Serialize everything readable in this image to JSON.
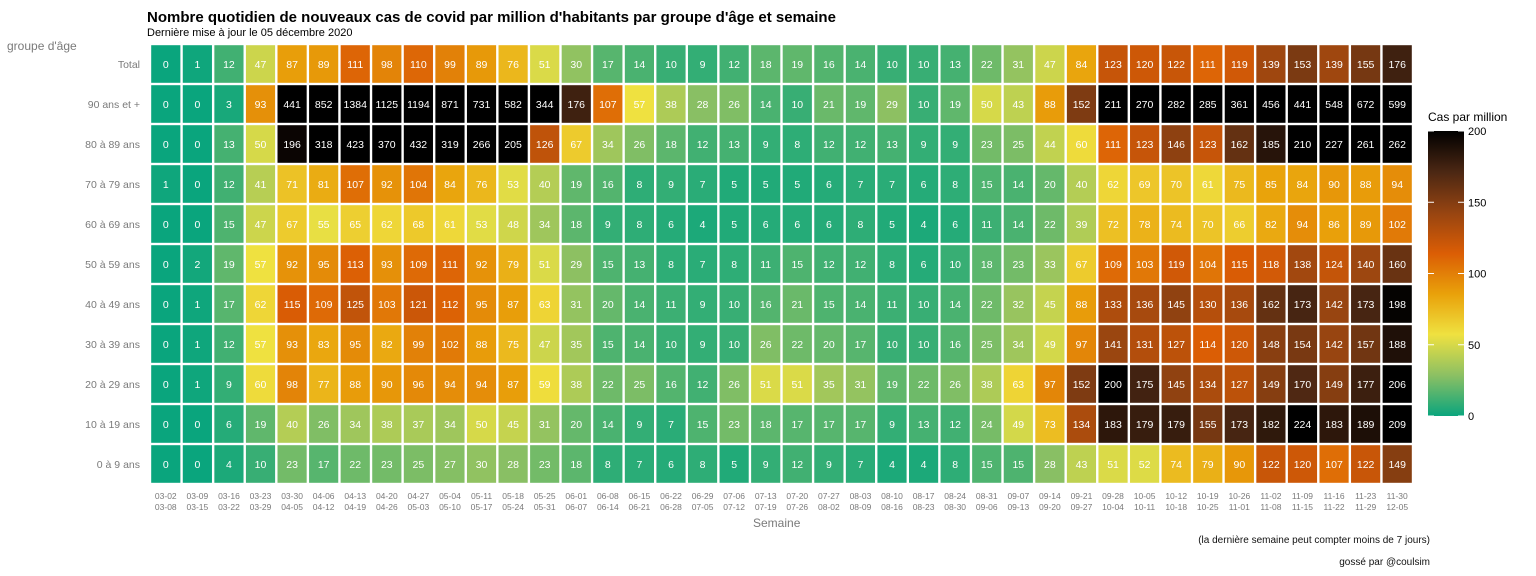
{
  "chart_data": {
    "type": "heatmap",
    "title": "Nombre quotidien de nouveaux cas de covid par million d'habitants par groupe d'âge et semaine",
    "subtitle": "Dernière mise à jour le 05 décembre 2020",
    "ylabel": "groupe d'âge",
    "xlabel": "Semaine",
    "caption": "(la dernière semaine peut compter moins de 7 jours)",
    "credit": "gossé par @coulsim",
    "legend": {
      "title": "Cas par million",
      "ticks": [
        0,
        50,
        100,
        150,
        200
      ],
      "range": [
        0,
        200
      ],
      "placement": "right"
    },
    "colors": [
      "#0aa57d",
      "#8cc063",
      "#efe140",
      "#e9a10a",
      "#db5d05",
      "#964411",
      "#4b2713",
      "#000000"
    ],
    "rows": [
      "Total",
      "90 ans et +",
      "80 à 89 ans",
      "70 à 79 ans",
      "60 à 69 ans",
      "50 à 59 ans",
      "40 à 49 ans",
      "30 à 39 ans",
      "20 à 29 ans",
      "10 à 19 ans",
      "0 à 9 ans"
    ],
    "columns": [
      [
        "03-02",
        "03-08"
      ],
      [
        "03-09",
        "03-15"
      ],
      [
        "03-16",
        "03-22"
      ],
      [
        "03-23",
        "03-29"
      ],
      [
        "03-30",
        "04-05"
      ],
      [
        "04-06",
        "04-12"
      ],
      [
        "04-13",
        "04-19"
      ],
      [
        "04-20",
        "04-26"
      ],
      [
        "04-27",
        "05-03"
      ],
      [
        "05-04",
        "05-10"
      ],
      [
        "05-11",
        "05-17"
      ],
      [
        "05-18",
        "05-24"
      ],
      [
        "05-25",
        "05-31"
      ],
      [
        "06-01",
        "06-07"
      ],
      [
        "06-08",
        "06-14"
      ],
      [
        "06-15",
        "06-21"
      ],
      [
        "06-22",
        "06-28"
      ],
      [
        "06-29",
        "07-05"
      ],
      [
        "07-06",
        "07-12"
      ],
      [
        "07-13",
        "07-19"
      ],
      [
        "07-20",
        "07-26"
      ],
      [
        "07-27",
        "08-02"
      ],
      [
        "08-03",
        "08-09"
      ],
      [
        "08-10",
        "08-16"
      ],
      [
        "08-17",
        "08-23"
      ],
      [
        "08-24",
        "08-30"
      ],
      [
        "08-31",
        "09-06"
      ],
      [
        "09-07",
        "09-13"
      ],
      [
        "09-14",
        "09-20"
      ],
      [
        "09-21",
        "09-27"
      ],
      [
        "09-28",
        "10-04"
      ],
      [
        "10-05",
        "10-11"
      ],
      [
        "10-12",
        "10-18"
      ],
      [
        "10-19",
        "10-25"
      ],
      [
        "10-26",
        "11-01"
      ],
      [
        "11-02",
        "11-08"
      ],
      [
        "11-09",
        "11-15"
      ],
      [
        "11-16",
        "11-22"
      ],
      [
        "11-23",
        "11-29"
      ],
      [
        "11-30",
        "12-05"
      ]
    ],
    "values": [
      [
        0,
        1,
        12,
        47,
        87,
        89,
        111,
        98,
        110,
        99,
        89,
        76,
        51,
        30,
        17,
        14,
        10,
        9,
        12,
        18,
        19,
        16,
        14,
        10,
        10,
        13,
        22,
        31,
        47,
        84,
        123,
        120,
        122,
        111,
        119,
        139,
        153,
        139,
        155,
        176
      ],
      [
        0,
        0,
        3,
        93,
        441,
        852,
        1384,
        1125,
        1194,
        871,
        731,
        582,
        344,
        176,
        107,
        57,
        38,
        28,
        26,
        14,
        10,
        21,
        19,
        29,
        10,
        19,
        50,
        43,
        88,
        152,
        211,
        270,
        282,
        285,
        361,
        456,
        441,
        548,
        672,
        599
      ],
      [
        0,
        0,
        13,
        50,
        196,
        318,
        423,
        370,
        432,
        319,
        266,
        205,
        126,
        67,
        34,
        26,
        18,
        12,
        13,
        9,
        8,
        12,
        12,
        13,
        9,
        9,
        23,
        25,
        44,
        60,
        111,
        123,
        146,
        123,
        162,
        185,
        210,
        227,
        261,
        262
      ],
      [
        1,
        0,
        12,
        41,
        71,
        81,
        107,
        92,
        104,
        84,
        76,
        53,
        40,
        19,
        16,
        8,
        9,
        7,
        5,
        5,
        5,
        6,
        7,
        7,
        6,
        8,
        15,
        14,
        20,
        40,
        62,
        69,
        70,
        61,
        75,
        85,
        84,
        90,
        88,
        94
      ],
      [
        0,
        0,
        15,
        47,
        67,
        55,
        65,
        62,
        68,
        61,
        53,
        48,
        34,
        18,
        9,
        8,
        6,
        4,
        5,
        6,
        6,
        6,
        8,
        5,
        4,
        6,
        11,
        14,
        22,
        39,
        72,
        78,
        74,
        70,
        66,
        82,
        94,
        86,
        89,
        102
      ],
      [
        0,
        2,
        19,
        57,
        92,
        95,
        113,
        93,
        109,
        111,
        92,
        79,
        51,
        29,
        15,
        13,
        8,
        7,
        8,
        11,
        15,
        12,
        12,
        8,
        6,
        10,
        18,
        23,
        33,
        67,
        109,
        103,
        119,
        104,
        115,
        118,
        138,
        124,
        140,
        160
      ],
      [
        0,
        1,
        17,
        62,
        115,
        109,
        125,
        103,
        121,
        112,
        95,
        87,
        63,
        31,
        20,
        14,
        11,
        9,
        10,
        16,
        21,
        15,
        14,
        11,
        10,
        14,
        22,
        32,
        45,
        88,
        133,
        136,
        145,
        130,
        136,
        162,
        173,
        142,
        173,
        198
      ],
      [
        0,
        1,
        12,
        57,
        93,
        83,
        95,
        82,
        99,
        102,
        88,
        75,
        47,
        35,
        15,
        14,
        10,
        9,
        10,
        26,
        22,
        20,
        17,
        10,
        10,
        16,
        25,
        34,
        49,
        97,
        141,
        131,
        127,
        114,
        120,
        148,
        154,
        142,
        157,
        188
      ],
      [
        0,
        1,
        9,
        60,
        98,
        77,
        88,
        90,
        96,
        94,
        94,
        87,
        59,
        38,
        22,
        25,
        16,
        12,
        26,
        51,
        51,
        35,
        31,
        19,
        22,
        26,
        38,
        63,
        97,
        152,
        200,
        175,
        145,
        134,
        127,
        149,
        170,
        149,
        177,
        206
      ],
      [
        0,
        0,
        6,
        19,
        40,
        26,
        34,
        38,
        37,
        34,
        50,
        45,
        31,
        20,
        14,
        9,
        7,
        15,
        23,
        18,
        17,
        17,
        17,
        9,
        13,
        12,
        24,
        49,
        73,
        134,
        183,
        179,
        179,
        155,
        173,
        182,
        224,
        183,
        189,
        209
      ],
      [
        0,
        0,
        4,
        10,
        23,
        17,
        22,
        23,
        25,
        27,
        30,
        28,
        23,
        18,
        8,
        7,
        6,
        8,
        5,
        9,
        12,
        9,
        7,
        4,
        4,
        8,
        15,
        15,
        28,
        43,
        51,
        52,
        74,
        79,
        90,
        122,
        120,
        107,
        122,
        149
      ]
    ]
  }
}
